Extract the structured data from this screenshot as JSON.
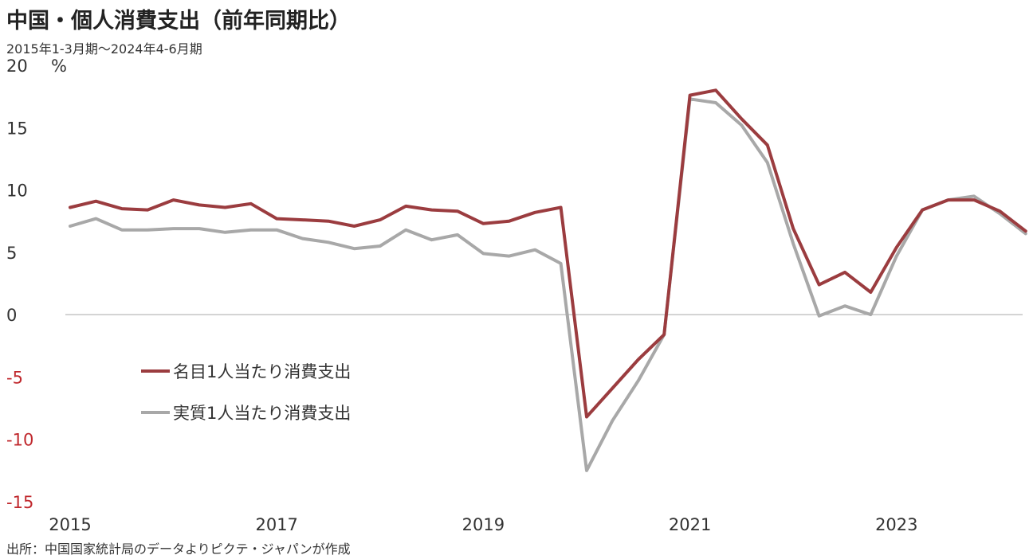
{
  "title": "中国・個人消費支出（前年同期比）",
  "subtitle": "2015年1-3月期～2024年4-6月期",
  "source": "出所：中国国家統計局のデータよりピクテ・ジャパンが作成",
  "chart_data": {
    "type": "line",
    "title": "中国・個人消費支出（前年同期比）",
    "ylabel": "%",
    "ylim": [
      -15,
      20
    ],
    "yticks": [
      20,
      15,
      10,
      5,
      0,
      -5,
      -10,
      -15
    ],
    "xticks": [
      "2015",
      "2017",
      "2019",
      "2021",
      "2023"
    ],
    "legend_position": "lower-left inside plot",
    "grid": false,
    "x": [
      "2015Q1",
      "2015Q2",
      "2015Q3",
      "2015Q4",
      "2016Q1",
      "2016Q2",
      "2016Q3",
      "2016Q4",
      "2017Q1",
      "2017Q2",
      "2017Q3",
      "2017Q4",
      "2018Q1",
      "2018Q2",
      "2018Q3",
      "2018Q4",
      "2019Q1",
      "2019Q2",
      "2019Q3",
      "2019Q4",
      "2020Q1",
      "2020Q2",
      "2020Q3",
      "2020Q4",
      "2021Q1",
      "2021Q2",
      "2021Q3",
      "2021Q4",
      "2022Q1",
      "2022Q2",
      "2022Q3",
      "2022Q4",
      "2023Q1",
      "2023Q2",
      "2023Q3",
      "2023Q4",
      "2024Q1",
      "2024Q2"
    ],
    "series": [
      {
        "name": "名目1人当たり消費支出",
        "color": "#9b3c3f",
        "values": [
          8.6,
          9.1,
          8.5,
          8.4,
          9.2,
          8.8,
          8.6,
          8.9,
          7.7,
          7.6,
          7.5,
          7.1,
          7.6,
          8.7,
          8.4,
          8.3,
          7.3,
          7.5,
          8.2,
          8.6,
          -8.2,
          -5.9,
          -3.6,
          -1.6,
          17.6,
          18.0,
          15.7,
          13.6,
          6.9,
          2.4,
          3.4,
          1.8,
          5.4,
          8.4,
          9.2,
          9.2,
          8.3,
          6.7
        ]
      },
      {
        "name": "実質1人当たり消費支出",
        "color": "#a8a8a8",
        "values": [
          7.1,
          7.7,
          6.8,
          6.8,
          6.9,
          6.9,
          6.6,
          6.8,
          6.8,
          6.1,
          5.8,
          5.3,
          5.5,
          6.8,
          6.0,
          6.4,
          4.9,
          4.7,
          5.2,
          4.1,
          -12.5,
          -8.5,
          -5.3,
          -1.6,
          17.3,
          17.0,
          15.2,
          12.2,
          5.7,
          -0.1,
          0.7,
          0.0,
          4.7,
          8.4,
          9.2,
          9.5,
          8.1,
          6.5
        ]
      }
    ]
  }
}
